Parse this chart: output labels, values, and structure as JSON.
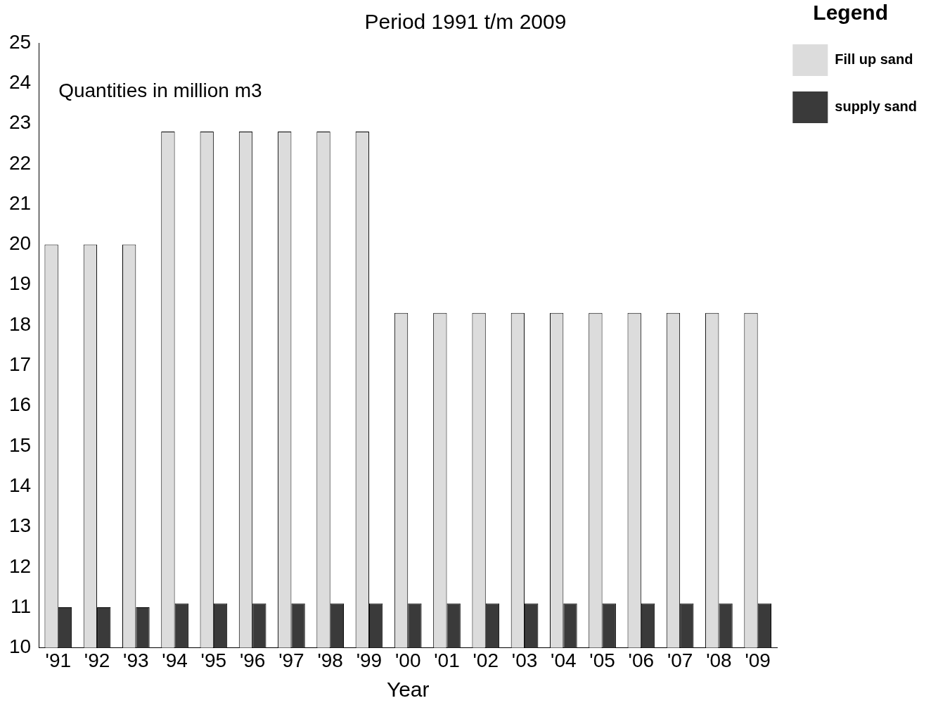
{
  "chart_data": {
    "type": "bar",
    "title": "Period 1991 t/m 2009",
    "xlabel": "Year",
    "legend_title": "Legend",
    "annotations": [
      "Quantities in million m3"
    ],
    "categories": [
      "'91",
      "'92",
      "'93",
      "'94",
      "'95",
      "'96",
      "'97",
      "'98",
      "'99",
      "'00",
      "'01",
      "'02",
      "'03",
      "'04",
      "'05",
      "'06",
      "'07",
      "'08",
      "'09"
    ],
    "series": [
      {
        "name": "Fill up sand",
        "color": "#dcdcdc",
        "values": [
          20,
          20,
          20,
          22.8,
          22.8,
          22.8,
          22.8,
          22.8,
          22.8,
          18.3,
          18.3,
          18.3,
          18.3,
          18.3,
          18.3,
          18.3,
          18.3,
          18.3,
          18.3
        ]
      },
      {
        "name": "supply sand",
        "color": "#3a3a3a",
        "values": [
          11,
          11,
          11,
          11.1,
          11.1,
          11.1,
          11.1,
          11.1,
          11.1,
          11.1,
          11.1,
          11.1,
          11.1,
          11.1,
          11.1,
          11.1,
          11.1,
          11.1,
          11.1
        ]
      }
    ],
    "ylim": [
      10,
      25
    ],
    "yticks": [
      10,
      11,
      12,
      13,
      14,
      15,
      16,
      17,
      18,
      19,
      20,
      21,
      22,
      23,
      24,
      25
    ],
    "grid": false,
    "legend": "right"
  }
}
